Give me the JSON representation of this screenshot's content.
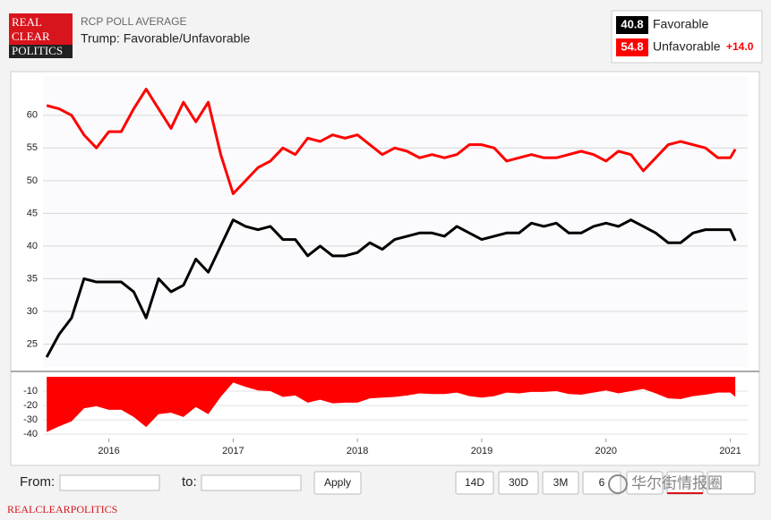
{
  "header": {
    "logo": [
      "REAL",
      "CLEAR",
      "POLITICS"
    ],
    "kicker": "RCP POLL AVERAGE"
  },
  "chart_data": [
    {
      "type": "line",
      "title": "Trump: Favorable/Unfavorable",
      "legend_note": "+14.0",
      "x": [
        2015.5,
        2015.6,
        2015.7,
        2015.8,
        2015.9,
        2016.0,
        2016.1,
        2016.2,
        2016.3,
        2016.4,
        2016.5,
        2016.6,
        2016.7,
        2016.8,
        2016.9,
        2017.0,
        2017.1,
        2017.2,
        2017.3,
        2017.4,
        2017.5,
        2017.6,
        2017.7,
        2017.8,
        2017.9,
        2018.0,
        2018.1,
        2018.2,
        2018.3,
        2018.4,
        2018.5,
        2018.6,
        2018.7,
        2018.8,
        2018.9,
        2019.0,
        2019.1,
        2019.2,
        2019.3,
        2019.4,
        2019.5,
        2019.6,
        2019.7,
        2019.8,
        2019.9,
        2020.0,
        2020.1,
        2020.2,
        2020.3,
        2020.4,
        2020.5,
        2020.6,
        2020.7,
        2020.8,
        2020.9,
        2021.0,
        2021.04
      ],
      "xlim": [
        2015.47,
        2021.14
      ],
      "xticks": [
        2016,
        2017,
        2018,
        2019,
        2020,
        2021
      ],
      "ylim": [
        21.5,
        66
      ],
      "yticks": [
        25,
        30,
        35,
        40,
        45,
        50,
        55,
        60
      ],
      "grid": true,
      "series": [
        {
          "name": "Favorable",
          "color": "#000000",
          "values": [
            23,
            26.5,
            29,
            35,
            34.5,
            34.5,
            34.5,
            33,
            29,
            35,
            33,
            34,
            38,
            36,
            40,
            44,
            43,
            42.5,
            43,
            41,
            41,
            38.5,
            40,
            38.5,
            38.5,
            39,
            40.5,
            39.5,
            41,
            41.5,
            42,
            42,
            41.5,
            43,
            42,
            41,
            41.5,
            42,
            42,
            43.5,
            43,
            43.5,
            42,
            42,
            43,
            43.5,
            43,
            44,
            43,
            42,
            40.5,
            40.5,
            42,
            42.5,
            42.5,
            42.5,
            40.8
          ]
        },
        {
          "name": "Unfavorable",
          "color": "#ff0000",
          "values": [
            61.5,
            61,
            60,
            57,
            55,
            57.5,
            57.5,
            61,
            64,
            61,
            58,
            62,
            59,
            62,
            54,
            48,
            50,
            52,
            53,
            55,
            54,
            56.5,
            56,
            57,
            56.5,
            57,
            55.5,
            54,
            55,
            54.5,
            53.5,
            54,
            53.5,
            54,
            55.5,
            55.5,
            55,
            53,
            53.5,
            54,
            53.5,
            53.5,
            54,
            54.5,
            54,
            53,
            54.5,
            54,
            51.5,
            53.5,
            55.5,
            56,
            55.5,
            55,
            53.5,
            53.5,
            54.8
          ]
        }
      ]
    },
    {
      "type": "area",
      "color": "#ff0000",
      "ylim": [
        -43,
        0
      ],
      "yticks": [
        -10,
        -20,
        -30,
        -40
      ],
      "grid": true,
      "values": [
        -38.5,
        -34.5,
        -31,
        -22,
        -20.5,
        -23,
        -23,
        -28,
        -35,
        -26,
        -25,
        -28,
        -21,
        -26,
        -14,
        -4,
        -7,
        -9.5,
        -10,
        -14,
        -13,
        -18,
        -16,
        -18.5,
        -18,
        -18,
        -15,
        -14.5,
        -14,
        -13,
        -11.5,
        -12,
        -12,
        -11,
        -13.5,
        -14.5,
        -13.5,
        -11,
        -11.5,
        -10.5,
        -10.5,
        -10,
        -12,
        -12.5,
        -11,
        -9.5,
        -11.5,
        -10,
        -8.5,
        -11.5,
        -15,
        -15.5,
        -13.5,
        -12.5,
        -11,
        -11,
        -14
      ]
    }
  ],
  "controls": {
    "from": "From:",
    "to": "to:",
    "apply": "Apply",
    "ranges": [
      "14D",
      "30D",
      "3M",
      "6"
    ]
  },
  "footer": "REALCLEARPOLITICS",
  "watermark": "华尔街情报圈"
}
